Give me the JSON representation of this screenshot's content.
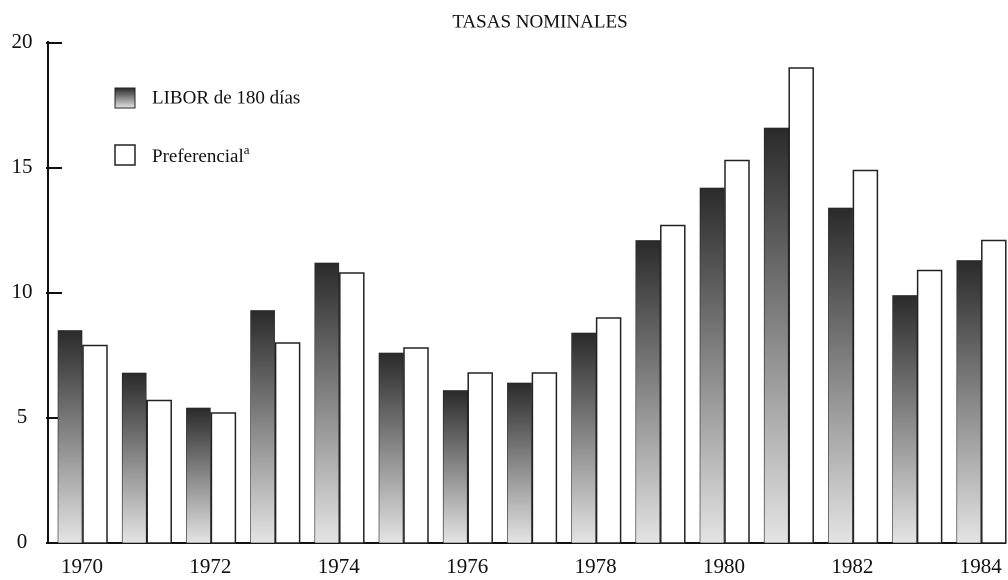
{
  "chart_data": {
    "type": "bar",
    "title": "TASAS NOMINALES",
    "categories": [
      "1970",
      null,
      "1972",
      null,
      "1974",
      null,
      "1976",
      null,
      "1978",
      null,
      "1980",
      null,
      "1982",
      null,
      "1984"
    ],
    "series": [
      {
        "name": "LIBOR de 180 días",
        "color": "#2a2a2a",
        "values": [
          8.5,
          6.8,
          5.4,
          9.3,
          11.2,
          7.6,
          6.1,
          6.4,
          8.4,
          12.1,
          14.2,
          16.6,
          13.4,
          9.9,
          11.3
        ]
      },
      {
        "name": "Preferencial",
        "footnote_mark": "a",
        "color": "#ffffff",
        "values": [
          7.9,
          5.7,
          5.2,
          8.0,
          10.8,
          7.8,
          6.8,
          6.8,
          9.0,
          12.7,
          15.3,
          19.0,
          14.9,
          10.9,
          12.1
        ]
      }
    ],
    "ylim": [
      0,
      20
    ],
    "yticks": [
      0,
      5,
      10,
      15,
      20
    ]
  }
}
